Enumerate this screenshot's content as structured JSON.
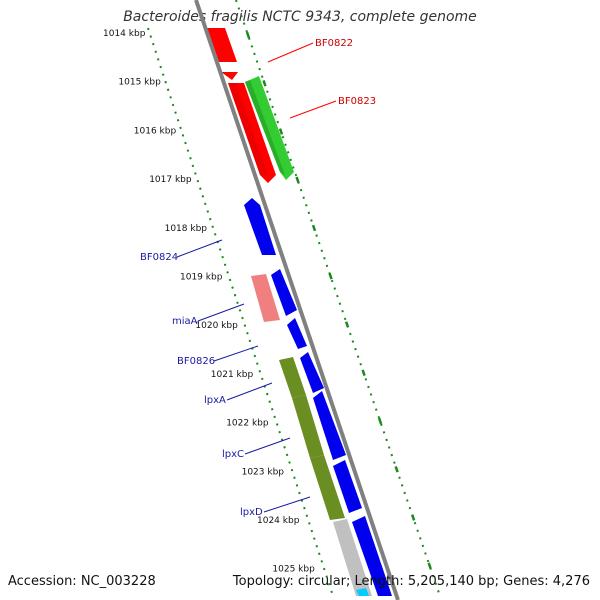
{
  "title": "Bacteroides fragilis NCTC 9343, complete genome",
  "footer": {
    "accession": "Accession: NC_003228",
    "summary": "Topology: circular; Length: 5,205,140 bp; Genes: 4,276"
  },
  "ticks": [
    "1014 kbp",
    "1015 kbp",
    "1016 kbp",
    "1017 kbp",
    "1018 kbp",
    "1019 kbp",
    "1020 kbp",
    "1021 kbp",
    "1022 kbp",
    "1023 kbp",
    "1024 kbp",
    "1025 kbp"
  ],
  "gene_labels": {
    "right": [
      "BF0822",
      "BF0823"
    ],
    "left": [
      "BF0824",
      "miaA",
      "BF0826",
      "lpxA",
      "lpxC",
      "lpxD"
    ]
  },
  "colors": {
    "backbone": "#808080",
    "tick_mark": "#1a8a1a",
    "red_gene": "#ff0000",
    "green_gene": "#33cc33",
    "blue_gene": "#0000ee",
    "pink_gene": "#f08080",
    "olive_gene": "#6b8e23",
    "gray_gene": "#c0c0c0",
    "cyan_gene": "#00ccff",
    "red_label": "#cc0000",
    "blue_label": "#1a1aa0"
  }
}
